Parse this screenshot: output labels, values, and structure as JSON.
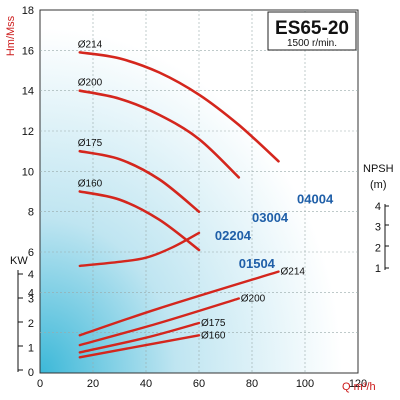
{
  "chart_data": {
    "type": "line",
    "title": "ES65-20",
    "subtitle": "1500 r/min.",
    "xlabel": "Q m³/h",
    "ylabel": "Hm/Mss",
    "power_label": "KW",
    "npsh_label": "NPSH",
    "npsh_unit": "(m)",
    "xlim": [
      0,
      120
    ],
    "ylim": [
      0,
      18
    ],
    "x_ticks": [
      "0",
      "20",
      "40",
      "60",
      "80",
      "100",
      "120"
    ],
    "y_ticks": [
      "2",
      "4",
      "6",
      "8",
      "10",
      "12",
      "14",
      "16",
      "18"
    ],
    "power_ticks": [
      "0",
      "1",
      "2",
      "3",
      "4"
    ],
    "npsh_ticks": [
      "1",
      "2",
      "3",
      "4"
    ],
    "grid": true,
    "head_curves": [
      {
        "name": "Ø214",
        "x": [
          15,
          30,
          45,
          60,
          75,
          90
        ],
        "y": [
          15.9,
          15.6,
          14.9,
          13.8,
          12.3,
          10.5
        ]
      },
      {
        "name": "Ø200",
        "x": [
          15,
          30,
          45,
          60,
          75
        ],
        "y": [
          14.0,
          13.6,
          12.8,
          11.6,
          9.7
        ]
      },
      {
        "name": "Ø175",
        "x": [
          15,
          30,
          45,
          60
        ],
        "y": [
          11.0,
          10.6,
          9.6,
          8.0
        ]
      },
      {
        "name": "Ø160",
        "x": [
          15,
          30,
          45,
          60
        ],
        "y": [
          9.0,
          8.6,
          7.6,
          6.1
        ]
      }
    ],
    "npsh_curve": {
      "x": [
        15,
        30,
        40,
        50,
        60
      ],
      "npsh_m": [
        1.1,
        1.3,
        1.5,
        2.0,
        2.7
      ]
    },
    "power_curves": [
      {
        "name": "Ø214",
        "x": [
          15,
          45,
          90
        ],
        "kw": [
          1.5,
          2.6,
          4.1
        ]
      },
      {
        "name": "Ø200",
        "x": [
          15,
          45,
          75
        ],
        "kw": [
          1.1,
          2.0,
          3.0
        ]
      },
      {
        "name": "Ø175",
        "x": [
          15,
          40,
          60
        ],
        "kw": [
          0.8,
          1.4,
          2.0
        ]
      },
      {
        "name": "Ø160",
        "x": [
          15,
          40,
          60
        ],
        "kw": [
          0.6,
          1.1,
          1.5
        ]
      }
    ],
    "model_labels": [
      {
        "text": "04004",
        "x": 97,
        "y": 8.4
      },
      {
        "text": "03004",
        "x": 80,
        "y": 7.5
      },
      {
        "text": "02204",
        "x": 66,
        "y": 6.6
      },
      {
        "text": "01504",
        "x": 75,
        "y": 5.2
      }
    ]
  }
}
